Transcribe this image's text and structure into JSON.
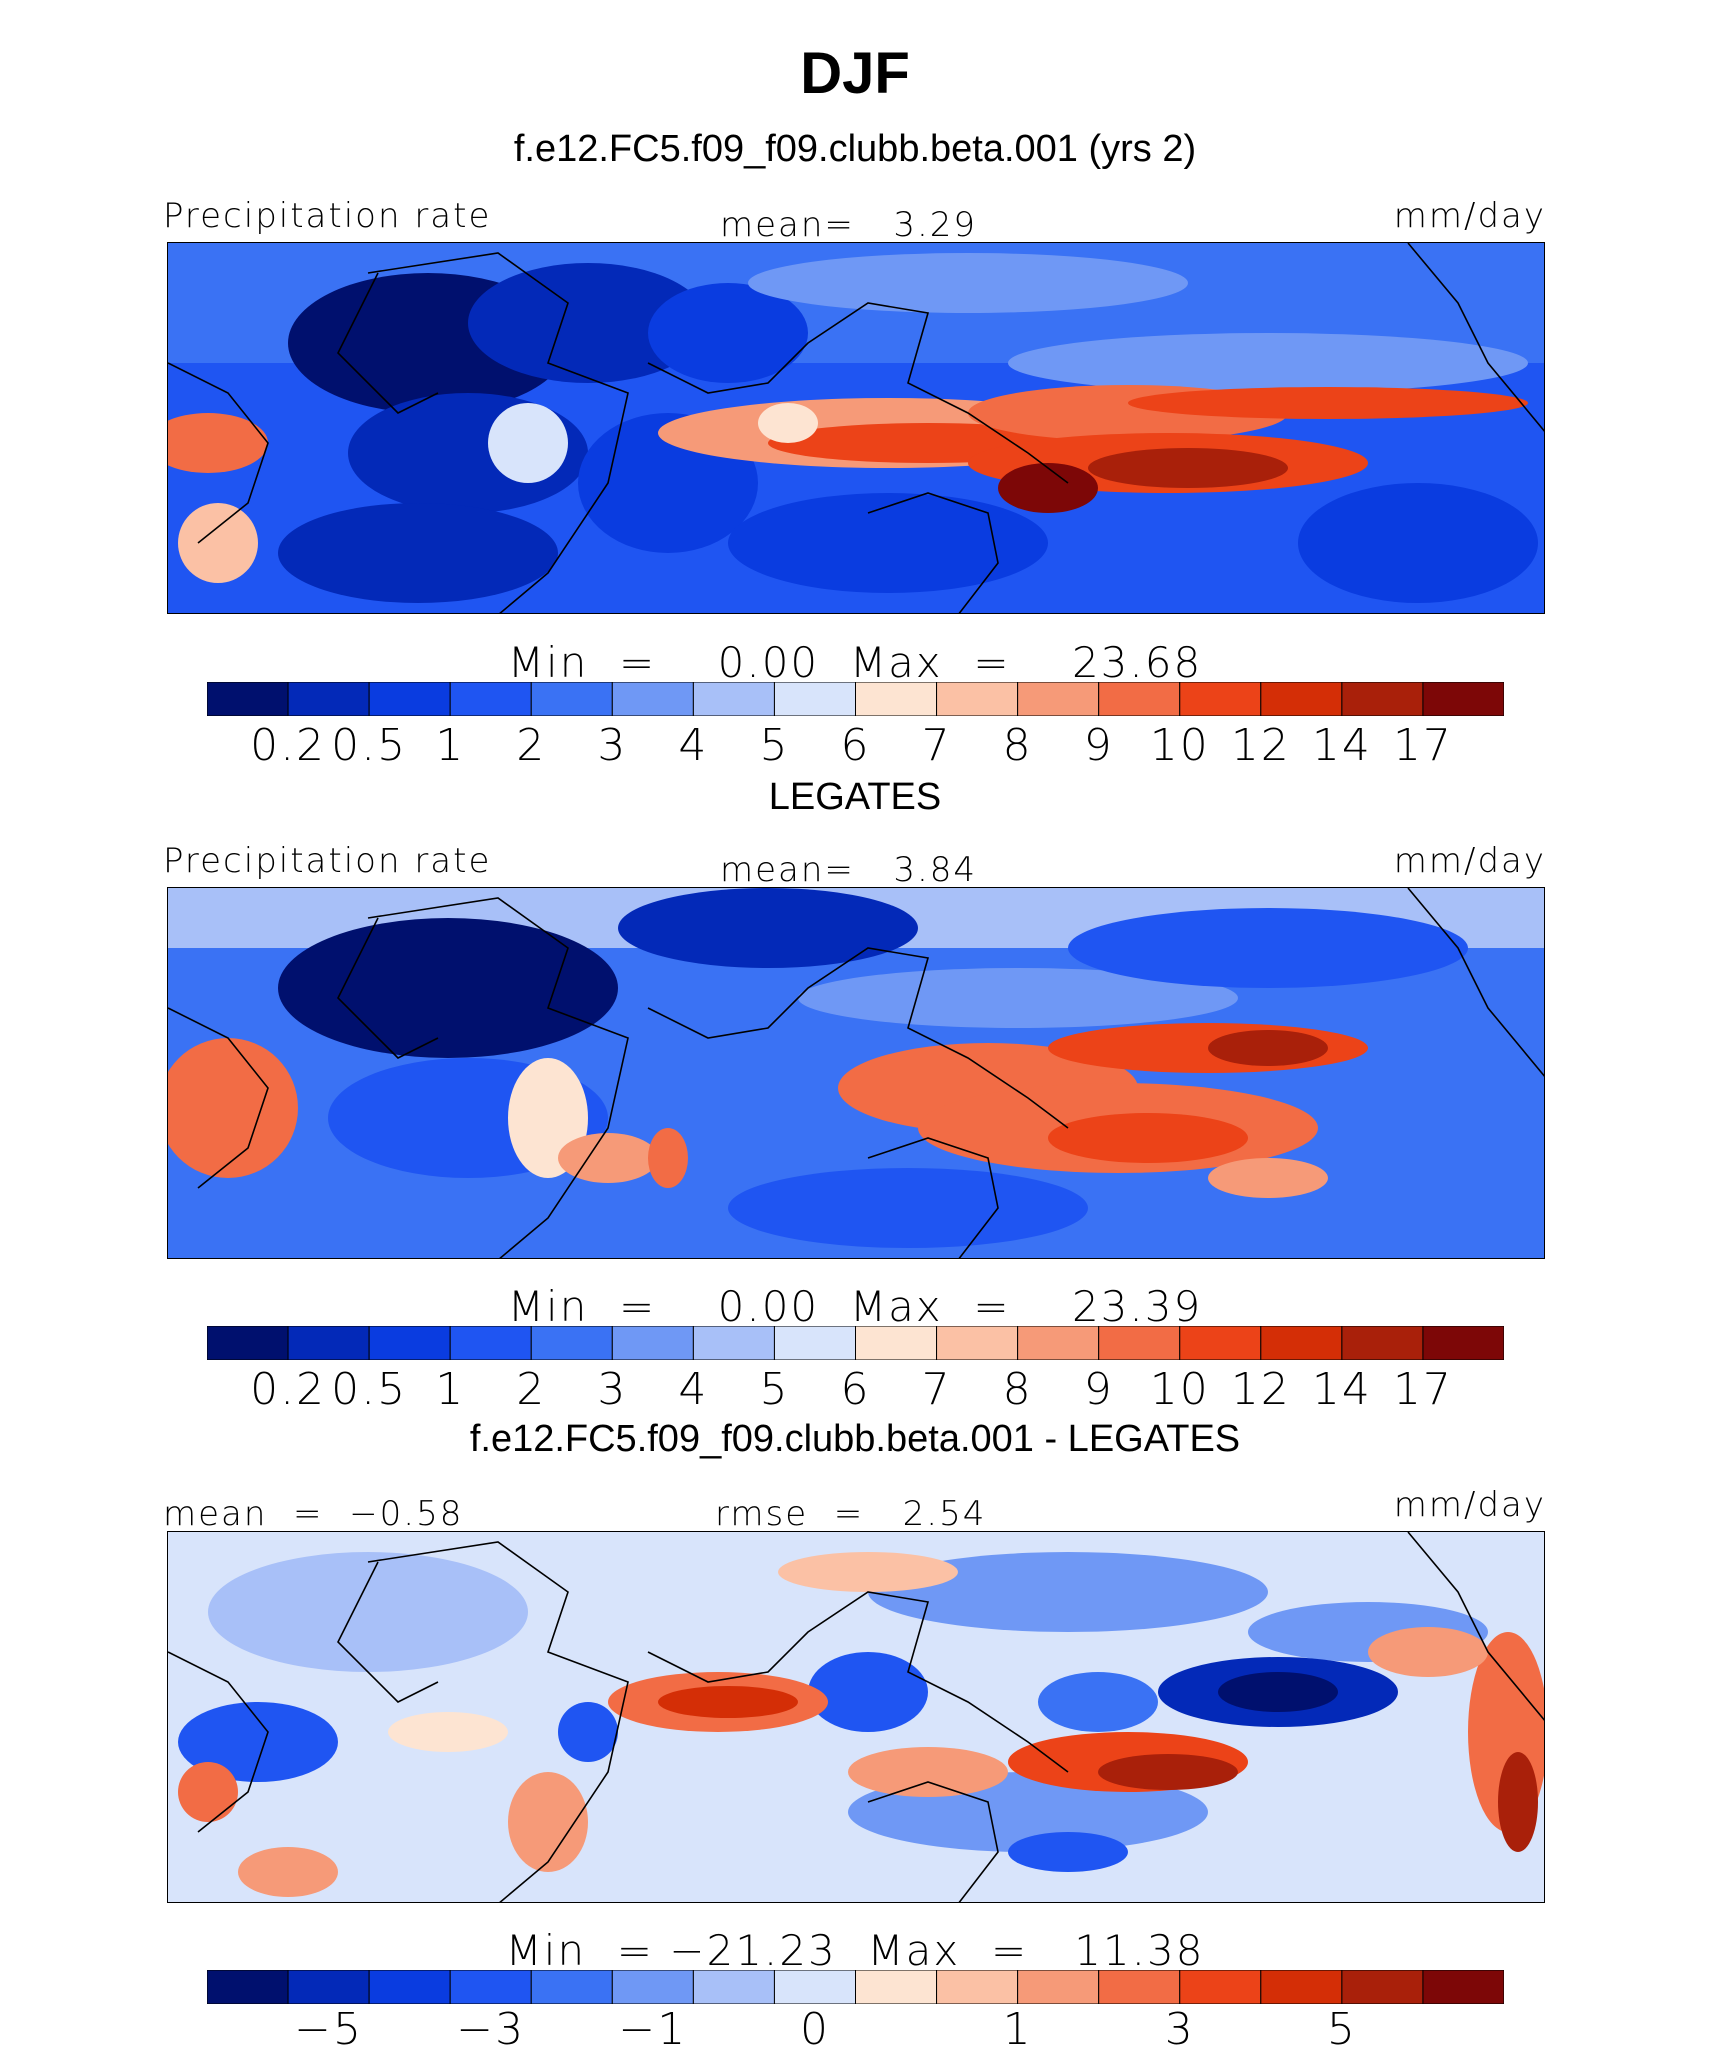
{
  "header": {
    "season": "DJF",
    "panel1_case": "f.e12.FC5.f09_f09.clubb.beta.001 (yrs 2)",
    "panel2_case": "LEGATES",
    "panel3_case": "f.e12.FC5.f09_f09.clubb.beta.001 - LEGATES"
  },
  "colors": {
    "abs_scale": [
      "#00106e",
      "#0329b8",
      "#0a3ce0",
      "#1f55f2",
      "#3a72f4",
      "#6f98f5",
      "#a8c0f8",
      "#d8e4fb",
      "#fde4d2",
      "#fbc1a5",
      "#f69a78",
      "#f26c45",
      "#ec4318",
      "#d42e06",
      "#a9200a",
      "#7d0707"
    ],
    "diff_scale": [
      "#00106e",
      "#0329b8",
      "#0a3ce0",
      "#1f55f2",
      "#3a72f4",
      "#6f98f5",
      "#a8c0f8",
      "#d8e4fb",
      "#fde4d2",
      "#fbc1a5",
      "#f69a78",
      "#f26c45",
      "#ec4318",
      "#d42e06",
      "#a9200a",
      "#7d0707"
    ]
  },
  "panels": [
    {
      "name": "model",
      "left_label": "Precipitation rate",
      "center_label": "mean=   3.29",
      "right_label": "mm/day",
      "min_max": "Min  =    0.00  Max  =    23.68",
      "tick_labels": [
        "0.2",
        "0.5",
        "1",
        "2",
        "3",
        "4",
        "5",
        "6",
        "7",
        "8",
        "9",
        "10",
        "12",
        "14",
        "17"
      ]
    },
    {
      "name": "obs",
      "left_label": "Precipitation rate",
      "center_label": "mean=   3.84",
      "right_label": "mm/day",
      "min_max": "Min  =    0.00  Max  =    23.39",
      "tick_labels": [
        "0.2",
        "0.5",
        "1",
        "2",
        "3",
        "4",
        "5",
        "6",
        "7",
        "8",
        "9",
        "10",
        "12",
        "14",
        "17"
      ]
    },
    {
      "name": "diff",
      "left_label": "mean  =  −0.58",
      "center_label": "rmse  =   2.54",
      "right_label": "mm/day",
      "min_max": "Min  = −21.23  Max  =   11.38",
      "tick_labels": [
        "−5",
        "−3",
        "−1",
        "0",
        "1",
        "3",
        "5"
      ]
    }
  ]
}
